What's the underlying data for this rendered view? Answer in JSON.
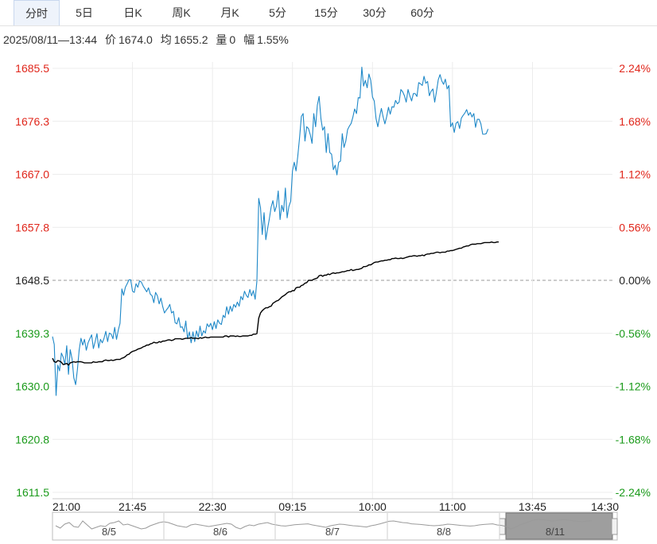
{
  "tabs": [
    {
      "label": "分时",
      "active": true
    },
    {
      "label": "5日",
      "active": false
    },
    {
      "label": "日K",
      "active": false
    },
    {
      "label": "周K",
      "active": false
    },
    {
      "label": "月K",
      "active": false
    },
    {
      "label": "5分",
      "active": false
    },
    {
      "label": "15分",
      "active": false
    },
    {
      "label": "30分",
      "active": false
    },
    {
      "label": "60分",
      "active": false
    }
  ],
  "info": {
    "datetime": "2025/08/11—13:44",
    "price_label": "价",
    "price": "1674.0",
    "avg_label": "均",
    "avg": "1655.2",
    "volume_label": "量",
    "volume": "0",
    "change_label": "幅",
    "change": "1.55%"
  },
  "colors": {
    "up": "#e0261b",
    "down": "#1a9a1a",
    "neutral": "#222222",
    "price_line": "#1e88c8",
    "avg_line": "#000000",
    "grid": "#ececec",
    "ref_dash": "#999999"
  },
  "chart_data": {
    "type": "line",
    "title": "",
    "xlabel": "",
    "ylabel": "",
    "reference_price": 1648.5,
    "ylim": [
      1611.5,
      1685.5
    ],
    "grid": true,
    "y_ticks": [
      "1685.5",
      "1676.3",
      "1667.0",
      "1657.8",
      "1648.5",
      "1639.3",
      "1630.0",
      "1620.8",
      "1611.5"
    ],
    "y_ticks_right": [
      "2.24%",
      "1.68%",
      "1.12%",
      "0.56%",
      "0.00%",
      "-0.56%",
      "-1.12%",
      "-1.68%",
      "-2.24%"
    ],
    "x_ticks": [
      "21:00",
      "21:45",
      "22:30",
      "09:15",
      "10:00",
      "11:00",
      "13:45",
      "14:30"
    ],
    "series": [
      {
        "values": [
          1638.7,
          1637.3,
          1628.4,
          1633.7,
          1632.7,
          1635.8,
          1635.1,
          1633.8,
          1637.1,
          1632.1,
          1636.4,
          1634.8,
          1631.5,
          1630.3,
          1632.9,
          1636.3,
          1638.4,
          1637.2,
          1638.2,
          1636.3,
          1637.6,
          1638.3,
          1639.0,
          1636.6,
          1637.8,
          1639.2,
          1636.7,
          1638.2,
          1637.6,
          1638.4,
          1639.6,
          1637.8,
          1639.3,
          1639.1,
          1638.3,
          1640.3,
          1638.2,
          1639.8,
          1641.0,
          1647.0,
          1645.9,
          1647.3,
          1647.9,
          1648.6,
          1648.6,
          1646.6,
          1646.4,
          1647.9,
          1647.3,
          1648.4,
          1648.2,
          1647.5,
          1647.0,
          1646.5,
          1647.2,
          1646.1,
          1645.8,
          1644.6,
          1646.4,
          1645.8,
          1644.4,
          1645.4,
          1643.9,
          1642.8,
          1643.3,
          1643.7,
          1644.3,
          1642.8,
          1643.1,
          1641.1,
          1640.9,
          1642.0,
          1640.3,
          1640.4,
          1639.5,
          1641.4,
          1638.3,
          1639.5,
          1637.6,
          1639.5,
          1637.8,
          1639.7,
          1638.6,
          1640.5,
          1638.8,
          1639.7,
          1639.3,
          1640.9,
          1640.4,
          1641.0,
          1639.9,
          1641.3,
          1640.1,
          1641.6,
          1641.0,
          1640.8,
          1642.4,
          1642.0,
          1643.9,
          1642.6,
          1644.0,
          1643.1,
          1644.3,
          1643.8,
          1644.7,
          1644.0,
          1645.7,
          1645.1,
          1646.6,
          1645.9,
          1645.5,
          1646.9,
          1645.8,
          1646.7,
          1645.2,
          1648.4,
          1662.8,
          1661.2,
          1656.5,
          1660.3,
          1655.6,
          1657.5,
          1659.3,
          1661.3,
          1662.4,
          1660.5,
          1661.5,
          1664.1,
          1659.1,
          1661.6,
          1660.5,
          1664.6,
          1659.4,
          1661.4,
          1662.3,
          1667.6,
          1669.1,
          1667.6,
          1670.2,
          1673.5,
          1677.1,
          1677.6,
          1672.8,
          1675.3,
          1675.0,
          1673.9,
          1672.4,
          1677.6,
          1675.3,
          1679.1,
          1680.6,
          1676.7,
          1674.7,
          1675.3,
          1670.8,
          1674.1,
          1670.8,
          1670.5,
          1667.8,
          1668.6,
          1666.9,
          1669.1,
          1669.3,
          1674.1,
          1671.7,
          1672.8,
          1674.8,
          1675.4,
          1675.9,
          1677.0,
          1678.4,
          1677.6,
          1680.4,
          1680.3,
          1685.7,
          1682.4,
          1683.4,
          1682.1,
          1684.5,
          1683.4,
          1680.5,
          1679.8,
          1676.7,
          1675.3,
          1677.0,
          1678.5,
          1677.0,
          1675.8,
          1677.1,
          1678.7,
          1677.5,
          1678.8,
          1678.7,
          1679.9,
          1679.3,
          1679.6,
          1681.8,
          1681.4,
          1680.7,
          1679.6,
          1681.8,
          1680.7,
          1679.8,
          1681.1,
          1681.1,
          1680.6,
          1683.0,
          1682.8,
          1682.5,
          1684.1,
          1682.9,
          1683.2,
          1680.7,
          1681.5,
          1681.9,
          1679.6,
          1681.4,
          1683.5,
          1684.4,
          1683.3,
          1682.7,
          1683.6,
          1681.9,
          1682.5,
          1675.3,
          1676.0,
          1674.3,
          1675.9,
          1676.2,
          1675.0,
          1676.8,
          1677.3,
          1677.7,
          1678.3,
          1677.3,
          1677.8,
          1677.0,
          1677.6,
          1675.2,
          1676.6,
          1676.6,
          1675.8,
          1674.0,
          1674.0,
          1674.1,
          1674.9
        ]
      },
      {
        "values": [
          1634.9,
          1634.3,
          1634.2,
          1634.5,
          1634.4,
          1634.2,
          1633.8,
          1633.9,
          1634.0,
          1633.7,
          1634.1,
          1634.2,
          1634.3,
          1634.2,
          1634.3,
          1634.3,
          1634.3,
          1634.2,
          1634.1,
          1634.1,
          1634.1,
          1634.1,
          1634.1,
          1634.3,
          1634.2,
          1634.2,
          1634.3,
          1634.3,
          1634.3,
          1634.5,
          1634.6,
          1634.5,
          1634.5,
          1634.6,
          1634.5,
          1634.6,
          1634.7,
          1634.7,
          1634.7,
          1634.9,
          1635.0,
          1635.2,
          1635.5,
          1635.6,
          1635.9,
          1636.1,
          1636.2,
          1636.3,
          1636.5,
          1636.6,
          1636.7,
          1636.9,
          1637.0,
          1637.2,
          1637.2,
          1637.4,
          1637.5,
          1637.7,
          1637.6,
          1637.6,
          1637.8,
          1637.7,
          1637.9,
          1637.9,
          1638.0,
          1638.1,
          1638.1,
          1638.0,
          1638.1,
          1638.3,
          1638.3,
          1638.3,
          1638.3,
          1638.2,
          1638.3,
          1638.4,
          1638.4,
          1638.4,
          1638.5,
          1638.4,
          1638.4,
          1638.4,
          1638.3,
          1638.5,
          1638.4,
          1638.5,
          1638.6,
          1638.5,
          1638.5,
          1638.6,
          1638.6,
          1638.6,
          1638.6,
          1638.6,
          1638.6,
          1638.6,
          1638.6,
          1638.8,
          1638.8,
          1638.6,
          1638.8,
          1638.8,
          1638.8,
          1638.7,
          1638.8,
          1638.7,
          1638.7,
          1638.8,
          1638.8,
          1638.8,
          1638.8,
          1638.9,
          1638.9,
          1639.1,
          1639.1,
          1639.2,
          1641.9,
          1642.8,
          1643.2,
          1643.5,
          1643.7,
          1643.7,
          1643.9,
          1644.0,
          1644.5,
          1644.7,
          1644.9,
          1645.0,
          1645.3,
          1645.6,
          1645.8,
          1646.0,
          1646.3,
          1646.5,
          1646.5,
          1646.7,
          1646.7,
          1647.2,
          1647.3,
          1647.3,
          1647.6,
          1647.7,
          1648.0,
          1648.1,
          1648.5,
          1648.5,
          1648.5,
          1648.7,
          1648.8,
          1648.9,
          1649.3,
          1649.4,
          1649.2,
          1649.4,
          1649.4,
          1649.6,
          1649.5,
          1649.7,
          1649.8,
          1649.7,
          1649.8,
          1649.8,
          1649.9,
          1650.0,
          1650.0,
          1650.1,
          1650.2,
          1650.2,
          1650.4,
          1650.2,
          1650.3,
          1650.4,
          1650.4,
          1650.5,
          1650.6,
          1650.9,
          1650.9,
          1651.0,
          1651.2,
          1651.2,
          1651.4,
          1651.6,
          1651.7,
          1651.7,
          1651.8,
          1651.9,
          1651.9,
          1652.0,
          1652.0,
          1652.1,
          1652.1,
          1652.3,
          1652.3,
          1652.4,
          1652.3,
          1652.3,
          1652.4,
          1652.3,
          1652.4,
          1652.5,
          1652.6,
          1652.7,
          1652.7,
          1652.8,
          1652.8,
          1652.7,
          1652.8,
          1652.8,
          1652.9,
          1652.8,
          1653.0,
          1653.1,
          1653.1,
          1653.2,
          1653.2,
          1653.3,
          1653.4,
          1653.4,
          1653.3,
          1653.4,
          1653.4,
          1653.4,
          1653.6,
          1653.6,
          1653.7,
          1653.7,
          1653.8,
          1653.9,
          1654.0,
          1654.1,
          1654.1,
          1654.3,
          1654.4,
          1654.5,
          1654.5,
          1654.7,
          1654.8,
          1654.8,
          1654.8,
          1654.9,
          1654.9,
          1654.9,
          1655.0,
          1655.1,
          1655.1,
          1655.1,
          1655.1,
          1655.2,
          1655.1,
          1655.1,
          1655.2,
          1655.2
        ]
      }
    ]
  },
  "navigator": {
    "dates": [
      "8/5",
      "8/6",
      "8/7",
      "8/8",
      "8/11"
    ],
    "values": [
      0.5,
      0.35,
      0.6,
      0.7,
      0.45,
      0.4,
      0.8,
      0.55,
      0.3,
      0.4,
      0.5,
      0.45,
      0.65,
      0.7,
      0.8,
      0.55,
      0.6,
      0.5,
      0.4,
      0.3,
      0.35,
      0.5,
      0.6,
      0.7,
      0.75,
      0.7,
      0.6,
      0.5,
      0.45,
      0.4,
      0.55,
      0.6,
      0.55,
      0.5,
      0.45,
      0.5,
      0.55,
      0.6,
      0.65,
      0.6,
      0.4,
      0.3,
      0.45,
      0.55,
      0.5,
      0.6,
      0.65,
      0.7,
      0.6,
      0.55,
      0.5,
      0.48,
      0.52,
      0.56,
      0.58,
      0.6,
      0.62,
      0.55,
      0.5,
      0.45,
      0.4,
      0.5,
      0.55,
      0.6,
      0.58,
      0.54,
      0.5,
      0.48,
      0.45,
      0.42,
      0.5,
      0.55,
      0.62,
      0.7,
      0.78,
      0.8,
      0.75,
      0.7,
      0.68,
      0.62,
      0.6,
      0.58,
      0.55,
      0.52,
      0.5,
      0.52,
      0.55,
      0.6,
      0.58,
      0.55,
      0.52,
      0.5,
      0.48,
      0.5,
      0.55,
      0.58,
      0.6,
      0.62,
      0.55,
      0.52,
      0.45,
      0.3,
      0.4,
      0.55,
      0.65,
      0.75,
      0.85,
      0.9,
      0.88,
      0.85,
      0.8,
      0.82,
      0.86,
      0.88,
      0.85,
      0.8,
      0.78,
      0.75,
      0.8,
      0.82
    ],
    "selected_date": "8/11"
  }
}
